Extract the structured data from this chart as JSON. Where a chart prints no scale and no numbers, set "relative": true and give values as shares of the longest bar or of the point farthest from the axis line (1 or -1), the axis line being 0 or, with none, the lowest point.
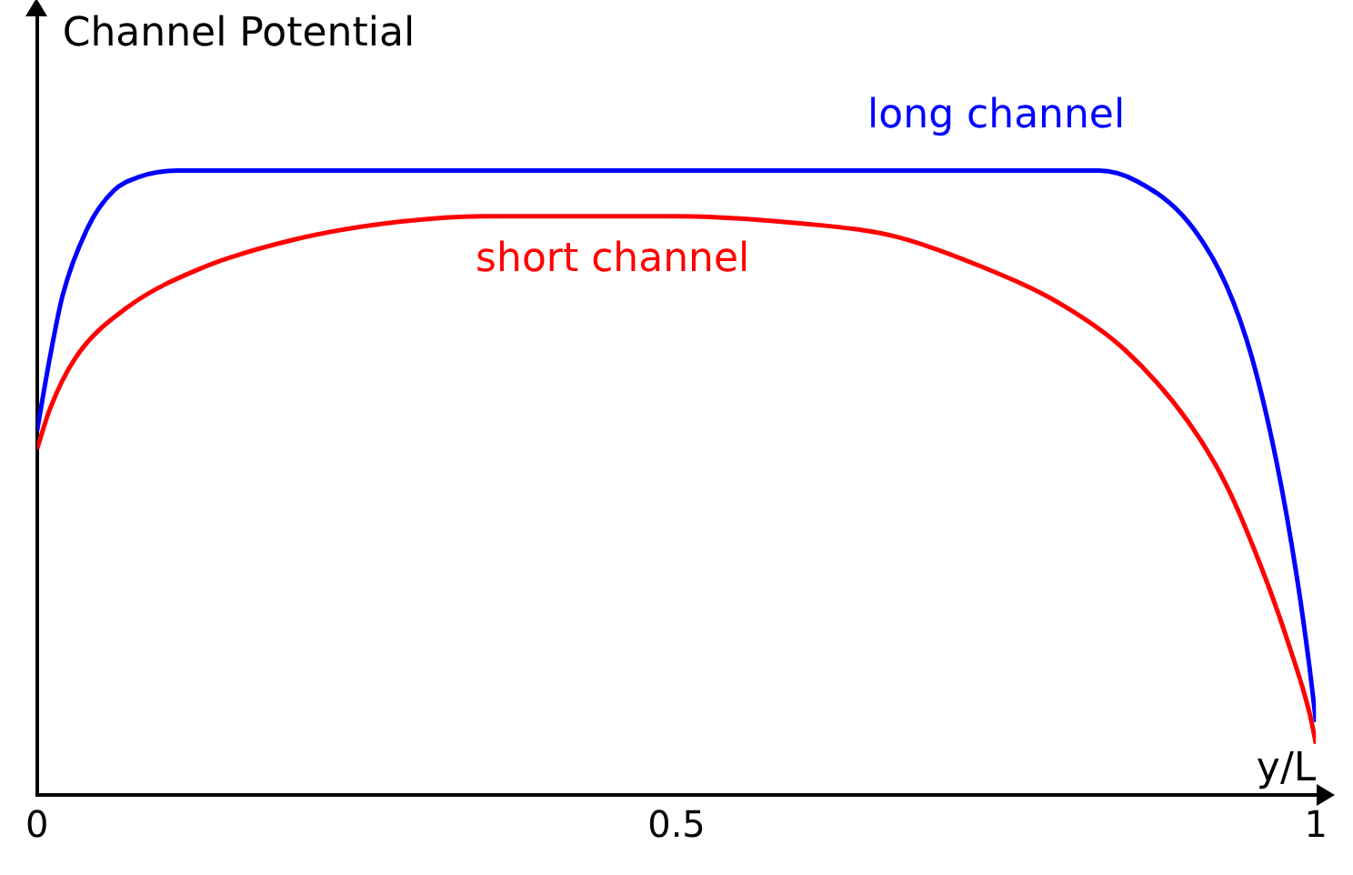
{
  "chart_data": {
    "type": "line",
    "relative": true,
    "xlabel": "y/L",
    "ylabel": "Channel Potential",
    "xlim": [
      0,
      1
    ],
    "xticks": [
      0,
      0.5,
      1
    ],
    "grid": false,
    "legend": false,
    "marker": "none",
    "line_style": "solid",
    "tick_labels": "x",
    "series": [
      {
        "name": "long channel",
        "color": "#0000ff",
        "x": [
          0,
          0.01,
          0.02,
          0.04,
          0.06,
          0.08,
          0.11,
          0.83,
          0.86,
          0.9,
          0.93,
          0.95,
          0.97,
          0.985,
          0.995,
          1
        ],
        "values": [
          0.583,
          0.7,
          0.8,
          0.91,
          0.968,
          0.99,
          1,
          1,
          0.983,
          0.918,
          0.816,
          0.7,
          0.525,
          0.35,
          0.204,
          0.117
        ]
      },
      {
        "name": "short channel",
        "color": "#ff0000",
        "x": [
          0,
          0.01,
          0.03,
          0.07,
          0.13,
          0.2,
          0.27,
          0.35,
          0.5,
          0.6,
          0.67,
          0.74,
          0.8,
          0.85,
          0.9,
          0.93,
          0.96,
          0.98,
          0.995,
          1
        ],
        "values": [
          0.554,
          0.618,
          0.7,
          0.78,
          0.845,
          0.889,
          0.915,
          0.927,
          0.927,
          0.915,
          0.895,
          0.845,
          0.787,
          0.714,
          0.598,
          0.496,
          0.35,
          0.233,
          0.131,
          0.082
        ]
      }
    ]
  }
}
